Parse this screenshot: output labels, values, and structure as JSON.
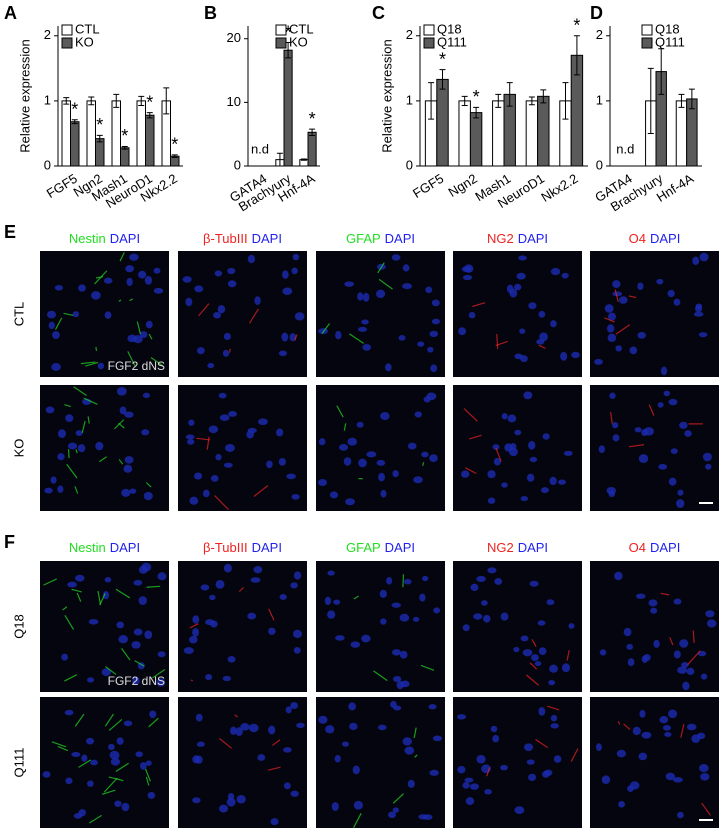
{
  "chart_data": [
    {
      "type": "bar",
      "panel_label": "A",
      "y_label": "Relative expression",
      "categories": [
        "FGF5",
        "Ngn2",
        "Mash1",
        "NeuroD1",
        "Nkx2.2"
      ],
      "series": [
        {
          "name": "CTL",
          "color": "#ffffff",
          "values": [
            1.0,
            1.0,
            1.0,
            1.0,
            1.0
          ],
          "errors": [
            0.05,
            0.06,
            0.1,
            0.07,
            0.2
          ],
          "significance": [
            null,
            null,
            null,
            null,
            null
          ]
        },
        {
          "name": "KO",
          "color": "#5a5a5a",
          "values": [
            0.68,
            0.42,
            0.28,
            0.78,
            0.15
          ],
          "errors": [
            0.03,
            0.05,
            0.02,
            0.04,
            0.02
          ],
          "significance": [
            "*",
            "*",
            "*",
            "*",
            "*"
          ]
        }
      ],
      "ylim": [
        0,
        2.15
      ],
      "yticks": [
        0,
        1,
        2
      ],
      "annotations": []
    },
    {
      "type": "bar",
      "panel_label": "B",
      "categories": [
        "GATA4",
        "Brachyury",
        "Hnf-4A"
      ],
      "series": [
        {
          "name": "CTL",
          "color": "#ffffff",
          "values": [
            null,
            1.0,
            1.0
          ],
          "errors": [
            null,
            1.0,
            0.1
          ],
          "significance": [
            null,
            null,
            null
          ]
        },
        {
          "name": "KO",
          "color": "#5a5a5a",
          "values": [
            null,
            18.2,
            5.3
          ],
          "errors": [
            null,
            1.2,
            0.5
          ],
          "significance": [
            null,
            "*",
            "*"
          ]
        }
      ],
      "ylim": [
        0,
        22
      ],
      "yticks": [
        0,
        10,
        20
      ],
      "annotations": [
        {
          "text": "n.d",
          "category": "GATA4"
        }
      ]
    },
    {
      "type": "bar",
      "panel_label": "C",
      "y_label": "Relative expression",
      "categories": [
        "FGF5",
        "Ngn2",
        "Mash1",
        "NeuroD1",
        "Nkx2.2"
      ],
      "series": [
        {
          "name": "Q18",
          "color": "#ffffff",
          "values": [
            1.0,
            1.0,
            1.0,
            1.0,
            1.0
          ],
          "errors": [
            0.28,
            0.07,
            0.1,
            0.06,
            0.28
          ],
          "significance": [
            null,
            null,
            null,
            null,
            null
          ]
        },
        {
          "name": "Q111",
          "color": "#5a5a5a",
          "values": [
            1.33,
            0.82,
            1.1,
            1.07,
            1.7
          ],
          "errors": [
            0.15,
            0.08,
            0.18,
            0.1,
            0.3
          ],
          "significance": [
            "*",
            "*",
            null,
            null,
            "*"
          ]
        }
      ],
      "ylim": [
        0,
        2.15
      ],
      "yticks": [
        0,
        1,
        2
      ],
      "annotations": []
    },
    {
      "type": "bar",
      "panel_label": "D",
      "categories": [
        "GATA4",
        "Brachyury",
        "Hnf-4A"
      ],
      "series": [
        {
          "name": "Q18",
          "color": "#ffffff",
          "values": [
            null,
            1.0,
            1.0
          ],
          "errors": [
            null,
            0.5,
            0.1
          ],
          "significance": [
            null,
            null,
            null
          ]
        },
        {
          "name": "Q111",
          "color": "#5a5a5a",
          "values": [
            null,
            1.45,
            1.03
          ],
          "errors": [
            null,
            0.35,
            0.15
          ],
          "significance": [
            null,
            null,
            null
          ]
        }
      ],
      "ylim": [
        0,
        2.15
      ],
      "yticks": [
        0,
        1,
        2
      ],
      "annotations": [
        {
          "text": "n.d",
          "category": "GATA4"
        }
      ]
    }
  ],
  "image_panels": [
    {
      "label": "E",
      "inset_label": "FGF2 dNS",
      "rows": [
        "CTL",
        "KO"
      ],
      "columns": [
        [
          {
            "text": "Nestin",
            "color": "#22dd22"
          },
          {
            "text": "DAPI",
            "color": "#2222ee"
          }
        ],
        [
          {
            "text": "β-TubIII",
            "color": "#ee2222"
          },
          {
            "text": "DAPI",
            "color": "#2222ee"
          }
        ],
        [
          {
            "text": "GFAP",
            "color": "#22dd22"
          },
          {
            "text": "DAPI",
            "color": "#2222ee"
          }
        ],
        [
          {
            "text": "NG2",
            "color": "#ee2222"
          },
          {
            "text": "DAPI",
            "color": "#2222ee"
          }
        ],
        [
          {
            "text": "O4",
            "color": "#ee2222"
          },
          {
            "text": "DAPI",
            "color": "#2222ee"
          }
        ]
      ]
    },
    {
      "label": "F",
      "inset_label": "FGF2 dNS",
      "rows": [
        "Q18",
        "Q111"
      ],
      "columns": [
        [
          {
            "text": "Nestin",
            "color": "#22dd22"
          },
          {
            "text": "DAPI",
            "color": "#2222ee"
          }
        ],
        [
          {
            "text": "β-TubIII",
            "color": "#ee2222"
          },
          {
            "text": "DAPI",
            "color": "#2222ee"
          }
        ],
        [
          {
            "text": "GFAP",
            "color": "#22dd22"
          },
          {
            "text": "DAPI",
            "color": "#2222ee"
          }
        ],
        [
          {
            "text": "NG2",
            "color": "#ee2222"
          },
          {
            "text": "DAPI",
            "color": "#2222ee"
          }
        ],
        [
          {
            "text": "O4",
            "color": "#ee2222"
          },
          {
            "text": "DAPI",
            "color": "#2222ee"
          }
        ]
      ]
    }
  ]
}
